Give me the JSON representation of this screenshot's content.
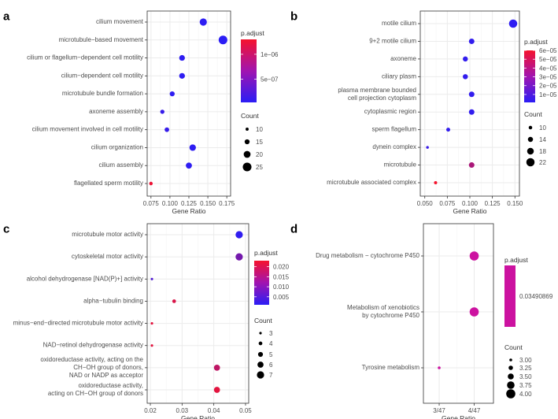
{
  "figure": {
    "legend_color_title": "p.adjust",
    "legend_size_title": "Count",
    "x_axis_title": "Gene Ratio",
    "colors": {
      "low": "#2b1df5",
      "high": "#f5132d",
      "grid": "#ebebeb",
      "panel_border": "#333333",
      "text": "#333333"
    }
  },
  "chart_data": [
    {
      "panel": "a",
      "type": "scatter",
      "title": "",
      "xlabel": "Gene Ratio",
      "ylabel": "",
      "xlim": [
        0.07,
        0.18
      ],
      "x_ticks": [
        0.075,
        0.1,
        0.125,
        0.15,
        0.175
      ],
      "x_tick_labels": [
        "0.075",
        "0.100",
        "0.125",
        "0.150",
        "0.175"
      ],
      "color_range": [
        3e-08,
        1.3e-06
      ],
      "color_ticks": [
        {
          "value": 1e-06,
          "label": "1e−06"
        },
        {
          "value": 5e-07,
          "label": "5e−07"
        }
      ],
      "size_range": [
        8,
        27
      ],
      "size_ticks": [
        10,
        15,
        20,
        25
      ],
      "terms": [
        {
          "label": "cilium movement",
          "x": 0.144,
          "count": 21,
          "padj": 4e-08
        },
        {
          "label": "microtubule−based movement",
          "x": 0.17,
          "count": 25,
          "padj": 3e-08
        },
        {
          "label": "cilium or flagellum−dependent cell motility",
          "x": 0.116,
          "count": 17,
          "padj": 5e-08
        },
        {
          "label": "cilium−dependent cell motility",
          "x": 0.116,
          "count": 17,
          "padj": 5e-08
        },
        {
          "label": "microtubule bundle formation",
          "x": 0.103,
          "count": 15,
          "padj": 5e-08
        },
        {
          "label": "axoneme assembly",
          "x": 0.09,
          "count": 13,
          "padj": 1e-07
        },
        {
          "label": "cilium movement involved in cell motility",
          "x": 0.096,
          "count": 14,
          "padj": 1e-07
        },
        {
          "label": "cilium organization",
          "x": 0.13,
          "count": 19,
          "padj": 5e-08
        },
        {
          "label": "cilium assembly",
          "x": 0.125,
          "count": 18,
          "padj": 5e-08
        },
        {
          "label": "flagellated sperm motility",
          "x": 0.075,
          "count": 11,
          "padj": 1.25e-06
        }
      ]
    },
    {
      "panel": "b",
      "type": "scatter",
      "title": "",
      "xlabel": "Gene Ratio",
      "ylabel": "",
      "xlim": [
        0.045,
        0.155
      ],
      "x_ticks": [
        0.05,
        0.075,
        0.1,
        0.125,
        0.15
      ],
      "x_tick_labels": [
        "0.050",
        "0.075",
        "0.100",
        "0.125",
        "0.150"
      ],
      "color_range": [
        1e-06,
        6e-05
      ],
      "color_ticks": [
        {
          "value": 6e-05,
          "label": "6e−05"
        },
        {
          "value": 5e-05,
          "label": "5e−05"
        },
        {
          "value": 4e-05,
          "label": "4e−05"
        },
        {
          "value": 3e-05,
          "label": "3e−05"
        },
        {
          "value": 2e-05,
          "label": "2e−05"
        },
        {
          "value": 1e-05,
          "label": "1e−05"
        }
      ],
      "size_range": [
        7,
        23
      ],
      "size_ticks": [
        10,
        14,
        18,
        22
      ],
      "terms": [
        {
          "label": "motile cilium",
          "x": 0.148,
          "count": 22,
          "padj": 2e-06
        },
        {
          "label": "9+2 motile cilium",
          "x": 0.102,
          "count": 15,
          "padj": 3e-06
        },
        {
          "label": "axoneme",
          "x": 0.095,
          "count": 14,
          "padj": 3e-06
        },
        {
          "label": "ciliary plasm",
          "x": 0.095,
          "count": 14,
          "padj": 3e-06
        },
        {
          "label": "plasma membrane bounded\ncell projection cytoplasm",
          "x": 0.102,
          "count": 15,
          "padj": 3e-06
        },
        {
          "label": "cytoplasmic region",
          "x": 0.102,
          "count": 15,
          "padj": 3e-06
        },
        {
          "label": "sperm flagellum",
          "x": 0.076,
          "count": 11,
          "padj": 3e-06
        },
        {
          "label": "dynein complex",
          "x": 0.053,
          "count": 8,
          "padj": 5e-06
        },
        {
          "label": "microtubule",
          "x": 0.102,
          "count": 15,
          "padj": 3.8e-05
        },
        {
          "label": "microtubule associated complex",
          "x": 0.062,
          "count": 9,
          "padj": 6e-05
        }
      ]
    },
    {
      "panel": "c",
      "type": "scatter",
      "title": "",
      "xlabel": "Gene Ratio",
      "ylabel": "",
      "xlim": [
        0.019,
        0.051
      ],
      "x_ticks": [
        0.02,
        0.03,
        0.04,
        0.05
      ],
      "x_tick_labels": [
        "0.02",
        "0.03",
        "0.04",
        "0.05"
      ],
      "color_range": [
        0.001,
        0.023
      ],
      "color_ticks": [
        {
          "value": 0.02,
          "label": "0.020"
        },
        {
          "value": 0.015,
          "label": "0.015"
        },
        {
          "value": 0.01,
          "label": "0.010"
        },
        {
          "value": 0.005,
          "label": "0.005"
        }
      ],
      "size_range": [
        2.5,
        7.5
      ],
      "size_ticks": [
        3,
        4,
        5,
        6,
        7
      ],
      "terms": [
        {
          "label": "microtubule motor activity",
          "x": 0.048,
          "count": 7,
          "padj": 0.0015
        },
        {
          "label": "cytoskeletal motor activity",
          "x": 0.048,
          "count": 7,
          "padj": 0.009
        },
        {
          "label": "alcohol dehydrogenase [NAD(P)+] activity",
          "x": 0.0205,
          "count": 3,
          "padj": 0.005
        },
        {
          "label": "alpha−tubulin binding",
          "x": 0.0275,
          "count": 4,
          "padj": 0.02
        },
        {
          "label": "minus−end−directed microtubule motor activity",
          "x": 0.0205,
          "count": 3,
          "padj": 0.021
        },
        {
          "label": "NAD−retinol dehydrogenase activity",
          "x": 0.0205,
          "count": 3,
          "padj": 0.021
        },
        {
          "label": "oxidoreductase activity, acting on the\nCH−OH group of donors,\nNAD or NADP as acceptor",
          "x": 0.041,
          "count": 6,
          "padj": 0.017
        },
        {
          "label": "oxidoreductase activity,\nacting on CH−OH group of donors",
          "x": 0.041,
          "count": 6,
          "padj": 0.021
        }
      ]
    },
    {
      "panel": "d",
      "type": "scatter",
      "title": "",
      "xlabel": "Gene Ratio",
      "ylabel": "",
      "xlim": [
        2.55,
        4.55
      ],
      "x_ticks": [
        3,
        4
      ],
      "x_tick_labels": [
        "3/47",
        "4/47"
      ],
      "color_range": [
        0.0349,
        0.0349
      ],
      "color_ticks": [
        {
          "value": 0.03490869,
          "label": "0.03490869"
        }
      ],
      "size_range": [
        3,
        4
      ],
      "size_ticks": [
        3.0,
        3.25,
        3.5,
        3.75,
        4.0
      ],
      "size_tick_labels": [
        "3.00",
        "3.25",
        "3.50",
        "3.75",
        "4.00"
      ],
      "terms": [
        {
          "label": "Drug metabolism − cytochrome P450",
          "x": 4,
          "count": 4,
          "padj": 0.03490869
        },
        {
          "label": "Metabolism of xenobiotics\nby cytochrome P450",
          "x": 4,
          "count": 4,
          "padj": 0.03490869
        },
        {
          "label": "Tyrosine metabolism",
          "x": 3,
          "count": 3,
          "padj": 0.03490869
        }
      ]
    }
  ]
}
